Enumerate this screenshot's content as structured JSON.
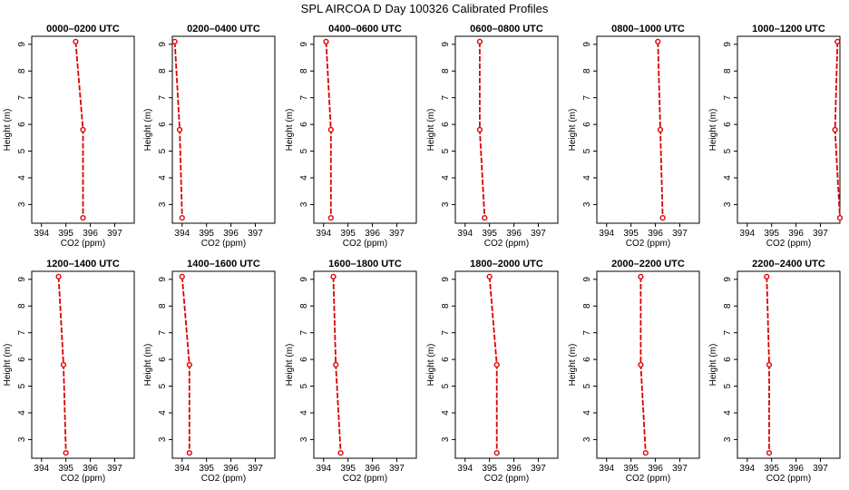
{
  "title": "SPL AIRCOA D  Day 100326  Calibrated Profiles",
  "chart_data": {
    "type": "line",
    "title": "SPL AIRCOA D  Day 100326  Calibrated Profiles",
    "line_color": "#dd0000",
    "xlabel": "CO2 (ppm)",
    "ylabel": "Height (m)",
    "xlim": [
      393.6,
      397.8
    ],
    "ylim": [
      2.3,
      9.3
    ],
    "xticks": [
      394,
      395,
      396,
      397
    ],
    "yticks": [
      3,
      4,
      5,
      6,
      7,
      8,
      9
    ],
    "grid": false,
    "heights": [
      9.1,
      5.8,
      2.5
    ],
    "panels": [
      {
        "title": "0000–0200 UTC",
        "values": [
          395.4,
          395.7,
          395.7
        ]
      },
      {
        "title": "0200–0400 UTC",
        "values": [
          393.7,
          393.9,
          394.0
        ]
      },
      {
        "title": "0400–0600 UTC",
        "values": [
          394.1,
          394.3,
          394.3
        ]
      },
      {
        "title": "0600–0800 UTC",
        "values": [
          394.6,
          394.6,
          394.8
        ]
      },
      {
        "title": "0800–1000 UTC",
        "values": [
          396.1,
          396.2,
          396.3
        ]
      },
      {
        "title": "1000–1200 UTC",
        "values": [
          397.7,
          397.6,
          397.8
        ]
      },
      {
        "title": "1200–1400 UTC",
        "values": [
          394.7,
          394.9,
          395.0
        ]
      },
      {
        "title": "1400–1600 UTC",
        "values": [
          394.0,
          394.3,
          394.3
        ]
      },
      {
        "title": "1600–1800 UTC",
        "values": [
          394.4,
          394.5,
          394.7
        ]
      },
      {
        "title": "1800–2000 UTC",
        "values": [
          395.0,
          395.3,
          395.3
        ]
      },
      {
        "title": "2000–2200 UTC",
        "values": [
          395.4,
          395.4,
          395.6
        ]
      },
      {
        "title": "2200–2400 UTC",
        "values": [
          394.8,
          394.9,
          394.9
        ]
      }
    ]
  }
}
